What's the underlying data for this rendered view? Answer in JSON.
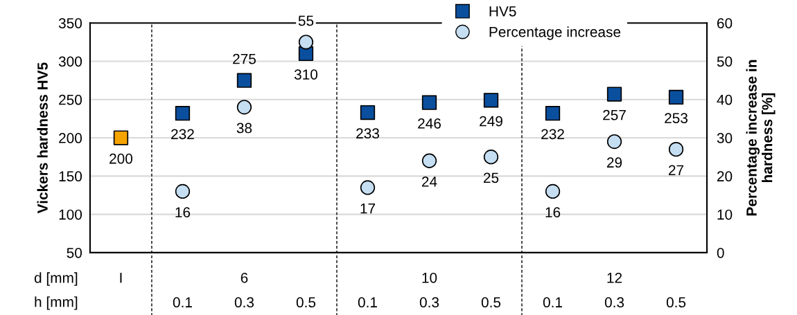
{
  "chart_data": {
    "type": "scatter",
    "ylabel": "Vickers hardness HV5",
    "y2label": "Percentage increase in\nhardness [%]",
    "categories": [
      null,
      "0.1",
      "0.3",
      "0.5",
      "0.1",
      "0.3",
      "0.5",
      "0.1",
      "0.3",
      "0.5"
    ],
    "series": [
      {
        "name": "HV5",
        "color": "#0a4f9e",
        "colors": [
          "#f5a300",
          "#0a4f9e",
          "#0a4f9e",
          "#0a4f9e",
          "#0a4f9e",
          "#0a4f9e",
          "#0a4f9e",
          "#0a4f9e",
          "#0a4f9e",
          "#0a4f9e"
        ],
        "marker": "square",
        "values": [
          200,
          232,
          275,
          310,
          233,
          246,
          249,
          232,
          257,
          253
        ]
      },
      {
        "name": "Percentage increase",
        "color": "#c5def2",
        "marker": "circle",
        "axis": "y2",
        "values": [
          null,
          16,
          38,
          55,
          17,
          24,
          25,
          16,
          29,
          27
        ]
      }
    ],
    "ylim": [
      50,
      350
    ],
    "yticks": [
      50,
      100,
      150,
      200,
      250,
      300,
      350
    ],
    "y2lim": [
      0,
      60
    ],
    "y2ticks": [
      0,
      10,
      20,
      30,
      40,
      50,
      60
    ],
    "annotations": [
      "d [mm]",
      "h [mm]",
      "I",
      "6",
      "10",
      "12"
    ],
    "data_labels": true,
    "grid": "y",
    "legend": "top right"
  }
}
